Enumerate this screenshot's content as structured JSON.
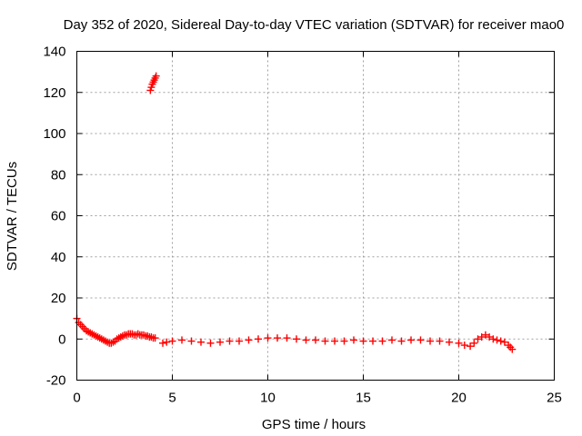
{
  "chart_data": {
    "type": "scatter",
    "title": "Day 352 of 2020, Sidereal Day-to-day VTEC variation (SDTVAR) for receiver mao0",
    "xlabel": "GPS time / hours",
    "ylabel": "SDTVAR / TECUs",
    "xlim": [
      0,
      25
    ],
    "ylim": [
      -20,
      140
    ],
    "xticks": [
      0,
      5,
      10,
      15,
      20,
      25
    ],
    "yticks": [
      -20,
      0,
      20,
      40,
      60,
      80,
      100,
      120,
      140
    ],
    "grid": true,
    "marker": "plus",
    "color": "#ff0000",
    "series": [
      {
        "name": "SDTVAR",
        "x": [
          0.0,
          0.1,
          0.2,
          0.3,
          0.4,
          0.5,
          0.6,
          0.7,
          0.8,
          0.9,
          1.0,
          1.1,
          1.2,
          1.3,
          1.4,
          1.5,
          1.6,
          1.7,
          1.8,
          1.9,
          2.0,
          2.1,
          2.2,
          2.3,
          2.4,
          2.5,
          2.6,
          2.7,
          2.8,
          2.9,
          3.0,
          3.1,
          3.2,
          3.3,
          3.4,
          3.5,
          3.6,
          3.7,
          3.8,
          3.9,
          4.0,
          4.1,
          3.85,
          3.9,
          3.95,
          4.0,
          4.05,
          4.1,
          4.15,
          4.5,
          4.7,
          5.0,
          5.5,
          6.0,
          6.5,
          7.0,
          7.5,
          8.0,
          8.5,
          9.0,
          9.5,
          10.0,
          10.5,
          11.0,
          11.5,
          12.0,
          12.5,
          13.0,
          13.5,
          14.0,
          14.5,
          15.0,
          15.5,
          16.0,
          16.5,
          17.0,
          17.5,
          18.0,
          18.5,
          19.0,
          19.5,
          20.0,
          20.3,
          20.6,
          20.8,
          21.0,
          21.2,
          21.4,
          21.6,
          21.8,
          22.0,
          22.2,
          22.4,
          22.6,
          22.7,
          22.8
        ],
        "y": [
          10,
          8,
          7,
          6,
          5,
          4,
          3.5,
          3,
          2.5,
          2,
          1.5,
          1,
          0.5,
          0,
          -0.5,
          -1,
          -1.5,
          -2,
          -2,
          -1.5,
          -1,
          0,
          0.5,
          1,
          1.5,
          2,
          2,
          2.5,
          2.5,
          2.5,
          2,
          2,
          2.5,
          2,
          2,
          2,
          1.5,
          1.5,
          1,
          1,
          0.5,
          0.5,
          121,
          122.5,
          124,
          125,
          126,
          127,
          128,
          -2,
          -1.5,
          -1,
          -0.5,
          -1,
          -1.5,
          -2,
          -1.5,
          -1,
          -1,
          -0.5,
          0,
          0.5,
          0.5,
          0.5,
          0,
          -0.5,
          -0.5,
          -1,
          -1,
          -1,
          -0.5,
          -1,
          -1,
          -1,
          -0.5,
          -1,
          -0.5,
          -0.5,
          -1,
          -1,
          -1.5,
          -2,
          -3,
          -3.5,
          -2,
          0,
          1,
          2,
          1,
          0,
          -0.5,
          -1,
          -1.5,
          -3,
          -4,
          -5
        ]
      }
    ]
  }
}
